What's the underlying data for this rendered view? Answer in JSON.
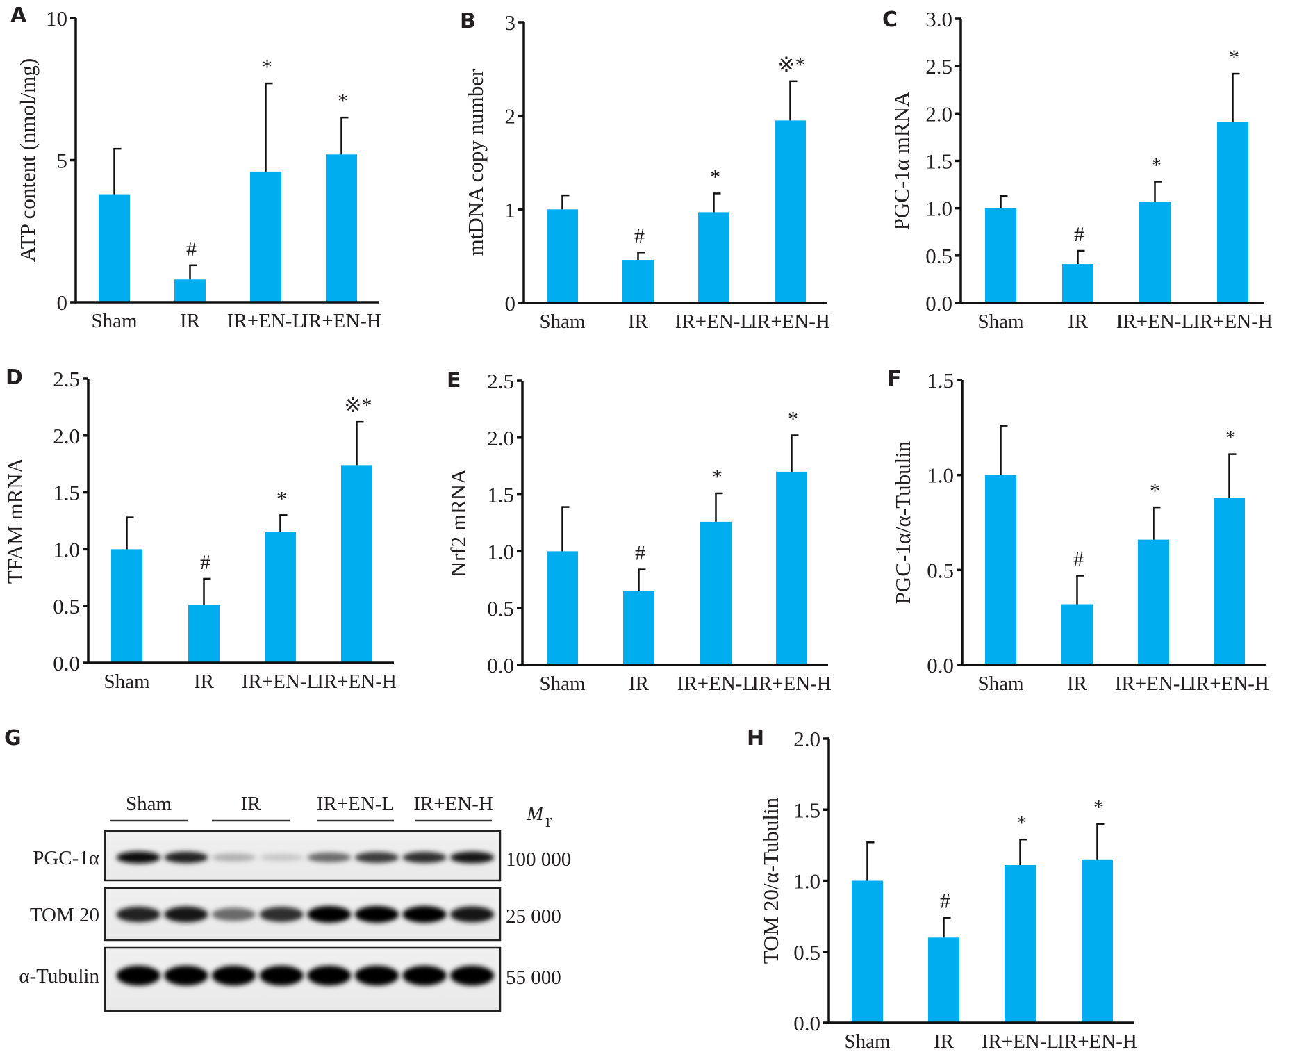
{
  "figure": {
    "bar_color": "#00aeef",
    "text_color": "#231f20"
  },
  "chart_data": [
    {
      "panel": "A",
      "type": "bar",
      "title": "",
      "xlabel": "",
      "ylabel": "ATP content (nmol/mg)",
      "ylim": [
        0,
        10
      ],
      "yticks": [
        0,
        5,
        10
      ],
      "ytick_labels": [
        "0",
        "5",
        "10"
      ],
      "grid": false,
      "categories": [
        "Sham",
        "IR",
        "IR+EN-L",
        "IR+EN-H"
      ],
      "values": [
        3.8,
        0.8,
        4.6,
        5.2
      ],
      "error_upper": [
        5.4,
        1.3,
        7.7,
        6.5
      ],
      "annotations": [
        "",
        "#",
        "*",
        "*"
      ]
    },
    {
      "panel": "B",
      "type": "bar",
      "title": "",
      "xlabel": "",
      "ylabel": "mtDNA copy number",
      "ylim": [
        0,
        3
      ],
      "yticks": [
        0,
        1,
        2,
        3
      ],
      "ytick_labels": [
        "0",
        "1",
        "2",
        "3"
      ],
      "grid": false,
      "categories": [
        "Sham",
        "IR",
        "IR+EN-L",
        "IR+EN-H"
      ],
      "values": [
        1.0,
        0.46,
        0.97,
        1.95
      ],
      "error_upper": [
        1.15,
        0.54,
        1.17,
        2.37
      ],
      "annotations": [
        "",
        "#",
        "*",
        "※*"
      ]
    },
    {
      "panel": "C",
      "type": "bar",
      "title": "",
      "xlabel": "",
      "ylabel": "PGC-1α mRNA",
      "ylim": [
        0,
        3
      ],
      "yticks": [
        0,
        0.5,
        1,
        1.5,
        2,
        2.5,
        3
      ],
      "ytick_labels": [
        "0.0",
        "0.5",
        "1.0",
        "1.5",
        "2.0",
        "2.5",
        "3.0"
      ],
      "grid": false,
      "categories": [
        "Sham",
        "IR",
        "IR+EN-L",
        "IR+EN-H"
      ],
      "values": [
        1.0,
        0.41,
        1.07,
        1.91
      ],
      "error_upper": [
        1.13,
        0.55,
        1.28,
        2.42
      ],
      "annotations": [
        "",
        "#",
        "*",
        "*"
      ]
    },
    {
      "panel": "D",
      "type": "bar",
      "title": "",
      "xlabel": "",
      "ylabel": "TFAM mRNA",
      "ylim": [
        0,
        2.5
      ],
      "yticks": [
        0,
        0.5,
        1,
        1.5,
        2,
        2.5
      ],
      "ytick_labels": [
        "0.0",
        "0.5",
        "1.0",
        "1.5",
        "2.0",
        "2.5"
      ],
      "grid": false,
      "categories": [
        "Sham",
        "IR",
        "IR+EN-L",
        "IR+EN-H"
      ],
      "values": [
        1.0,
        0.51,
        1.15,
        1.74
      ],
      "error_upper": [
        1.28,
        0.74,
        1.3,
        2.12
      ],
      "annotations": [
        "",
        "#",
        "*",
        "※*"
      ]
    },
    {
      "panel": "E",
      "type": "bar",
      "title": "",
      "xlabel": "",
      "ylabel": "Nrf2 mRNA",
      "ylim": [
        0,
        2.5
      ],
      "yticks": [
        0,
        0.5,
        1,
        1.5,
        2,
        2.5
      ],
      "ytick_labels": [
        "0.0",
        "0.5",
        "1.0",
        "1.5",
        "2.0",
        "2.5"
      ],
      "grid": false,
      "categories": [
        "Sham",
        "IR",
        "IR+EN-L",
        "IR+EN-H"
      ],
      "values": [
        1.0,
        0.65,
        1.26,
        1.7
      ],
      "error_upper": [
        1.39,
        0.84,
        1.51,
        2.02
      ],
      "annotations": [
        "",
        "#",
        "*",
        "*"
      ]
    },
    {
      "panel": "F",
      "type": "bar",
      "title": "",
      "xlabel": "",
      "ylabel": "PGC-1α/α-Tubulin",
      "ylim": [
        0,
        1.5
      ],
      "yticks": [
        0,
        0.5,
        1,
        1.5
      ],
      "ytick_labels": [
        "0.0",
        "0.5",
        "1.0",
        "1.5"
      ],
      "grid": false,
      "categories": [
        "Sham",
        "IR",
        "IR+EN-L",
        "IR+EN-H"
      ],
      "values": [
        1.0,
        0.32,
        0.66,
        0.88
      ],
      "error_upper": [
        1.26,
        0.47,
        0.83,
        1.11
      ],
      "annotations": [
        "",
        "#",
        "*",
        "*"
      ]
    },
    {
      "panel": "H",
      "type": "bar",
      "title": "",
      "xlabel": "",
      "ylabel": "TOM 20/α-Tubulin",
      "ylim": [
        0,
        2
      ],
      "yticks": [
        0,
        0.5,
        1,
        1.5,
        2
      ],
      "ytick_labels": [
        "0.0",
        "0.5",
        "1.0",
        "1.5",
        "2.0"
      ],
      "grid": false,
      "categories": [
        "Sham",
        "IR",
        "IR+EN-L",
        "IR+EN-H"
      ],
      "values": [
        1.0,
        0.6,
        1.11,
        1.15
      ],
      "error_upper": [
        1.27,
        0.74,
        1.29,
        1.4
      ],
      "annotations": [
        "",
        "#",
        "*",
        "*"
      ]
    }
  ],
  "western_blot": {
    "panel": "G",
    "groups": [
      "Sham",
      "IR",
      "IR+EN-L",
      "IR+EN-H"
    ],
    "mr_label": "M",
    "mr_subscript": "r",
    "lanes_per_group": 2,
    "rows": [
      {
        "protein": "PGC-1α",
        "mr": "100 000",
        "band_intensity": [
          0.95,
          0.85,
          0.25,
          0.15,
          0.55,
          0.75,
          0.8,
          0.9
        ]
      },
      {
        "protein": "TOM 20",
        "mr": "25 000",
        "band_intensity": [
          0.85,
          0.9,
          0.55,
          0.8,
          1.0,
          1.0,
          1.0,
          0.9
        ]
      },
      {
        "protein": "α-Tubulin",
        "mr": "55 000",
        "band_intensity": [
          1.0,
          1.0,
          1.0,
          1.0,
          1.0,
          1.0,
          1.0,
          1.0
        ]
      }
    ]
  }
}
